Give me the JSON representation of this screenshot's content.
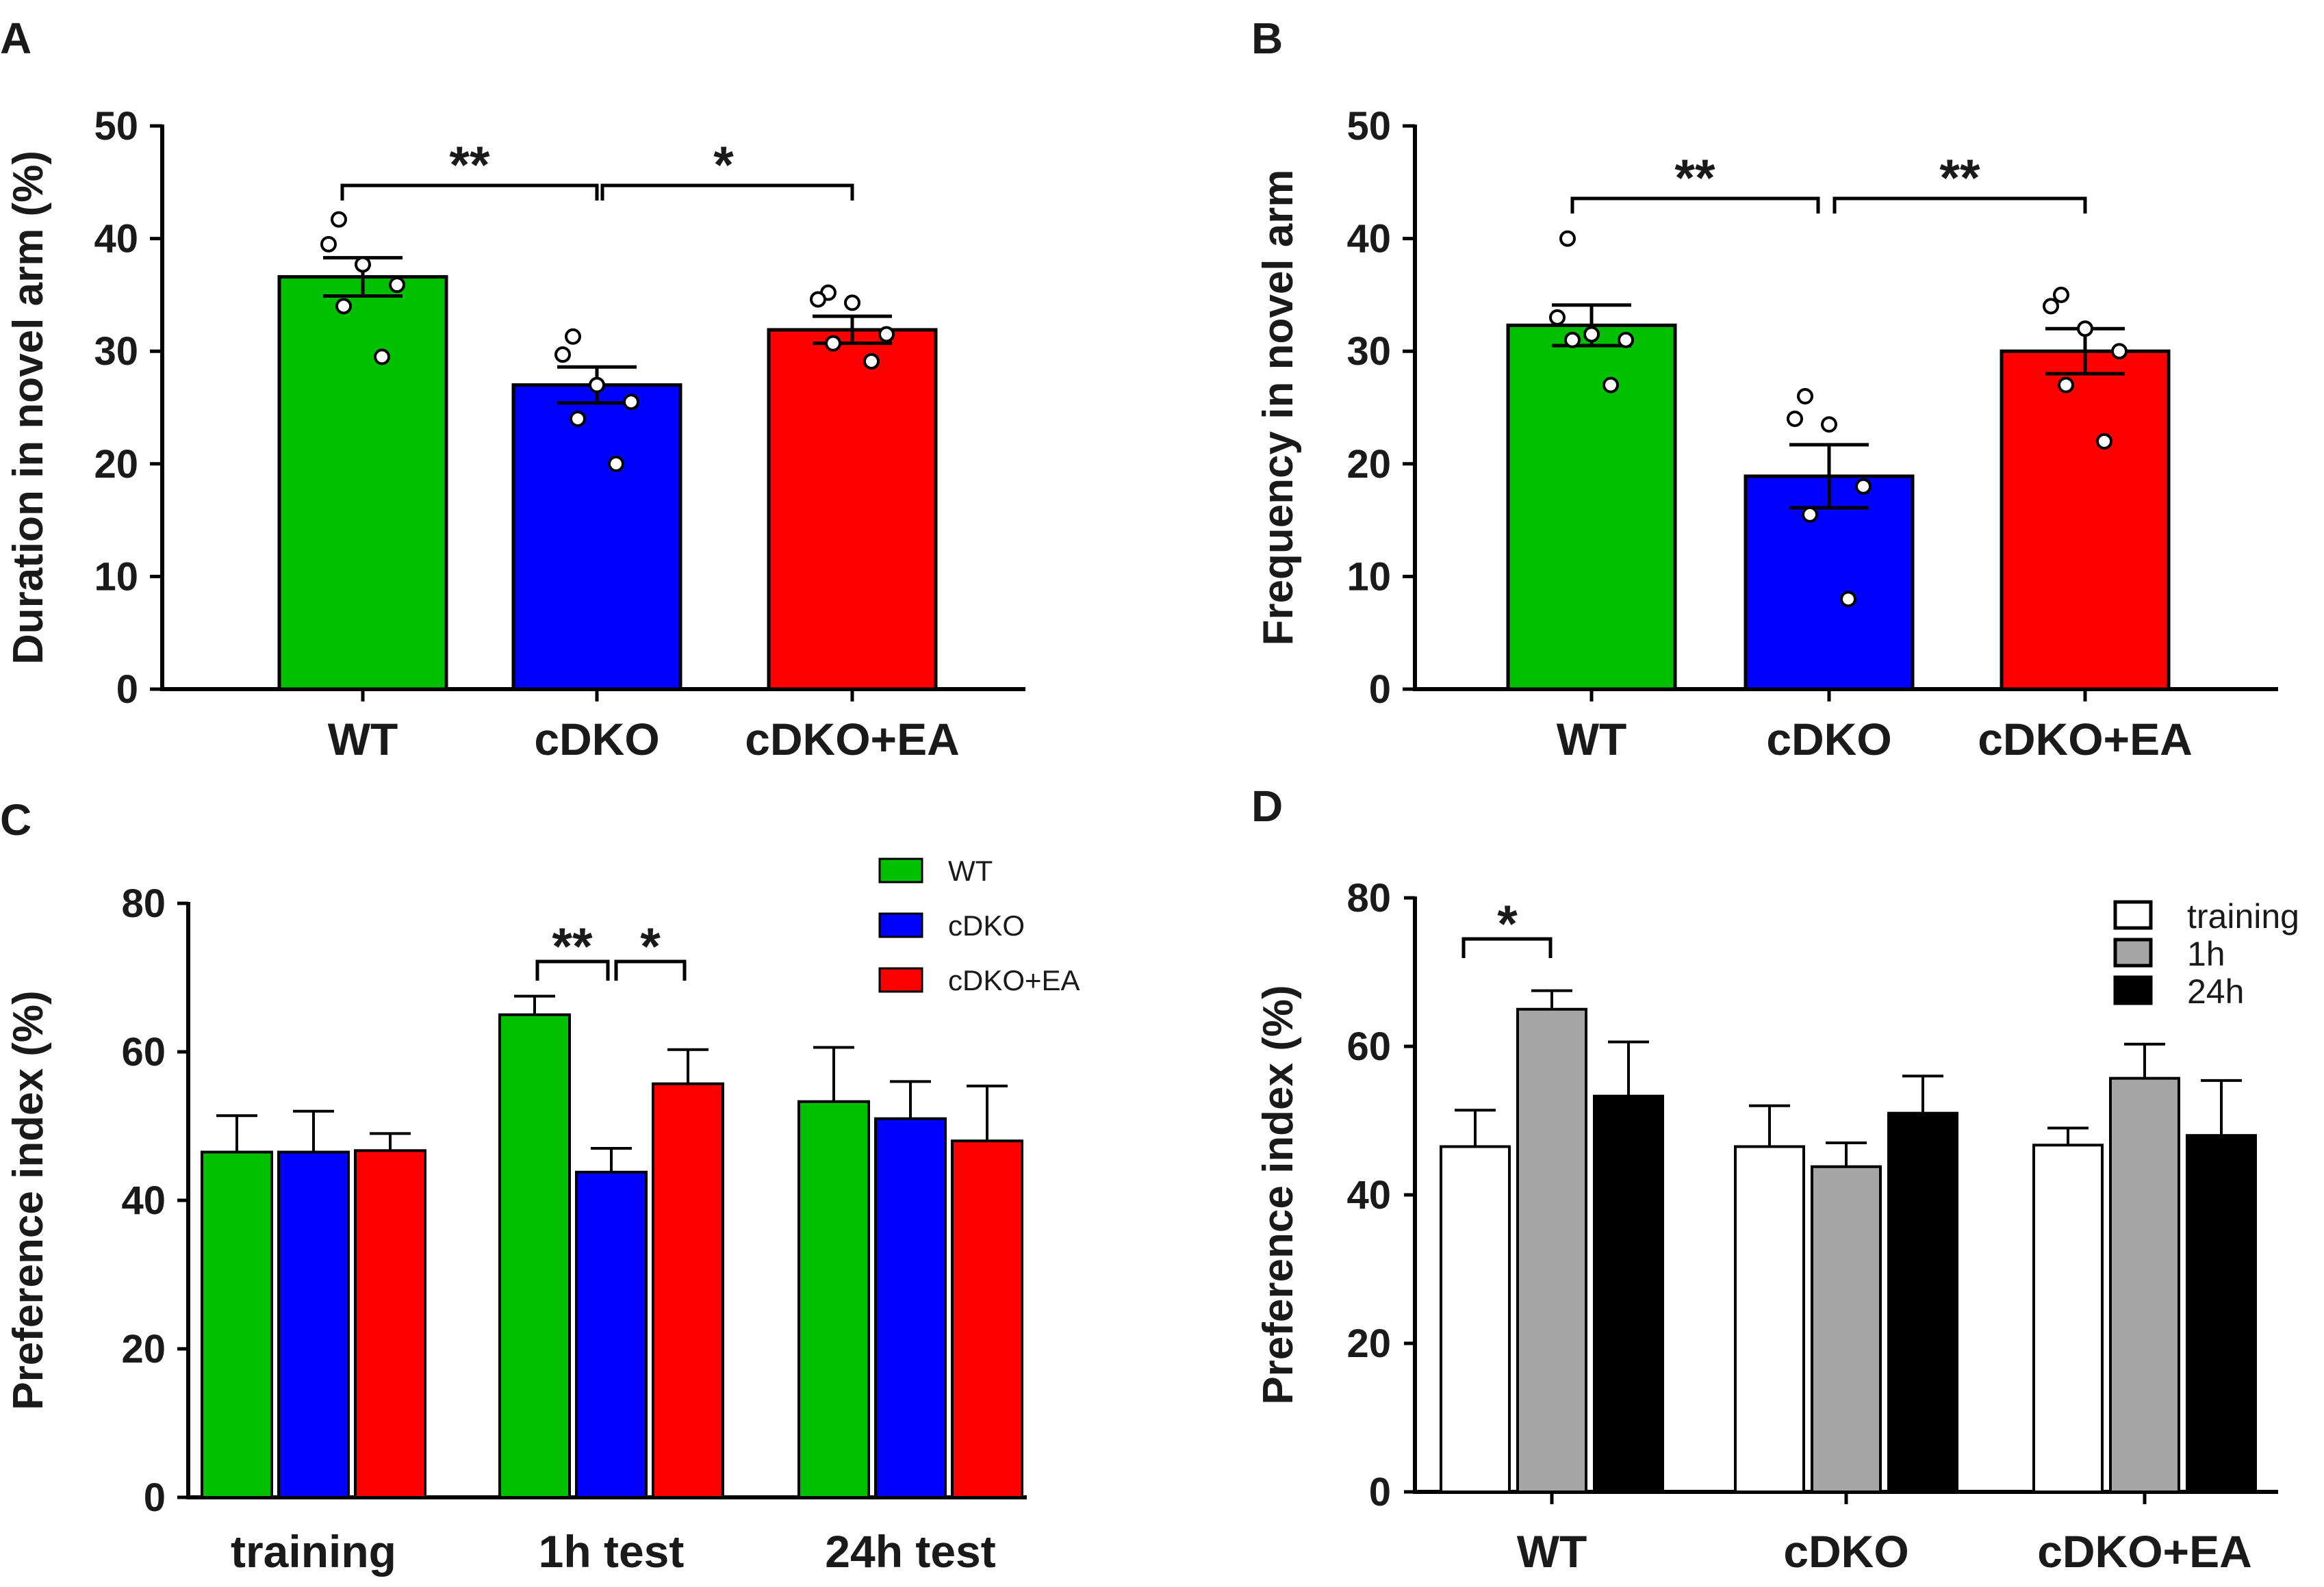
{
  "chart_data": [
    {
      "panel": "A",
      "type": "bar",
      "categories": [
        "WT",
        "cDKO",
        "cDKO+EA"
      ],
      "values": [
        36.6,
        27.0,
        31.9
      ],
      "errors": [
        1.7,
        1.6,
        1.2
      ],
      "colors": [
        "#00c000",
        "#0000ff",
        "#ff0000"
      ],
      "points": [
        [
          41.7,
          39.5,
          37.7,
          35.9,
          34.0,
          29.5
        ],
        [
          31.3,
          29.7,
          27.0,
          25.5,
          24.0,
          20.0
        ],
        [
          35.2,
          34.6,
          34.3,
          31.5,
          30.7,
          29.1
        ]
      ],
      "ylabel": "Duration in novel arm (%)",
      "ylim": [
        0,
        50
      ],
      "yticks": [
        "0",
        "10",
        "20",
        "30",
        "40",
        "50"
      ],
      "significance": [
        {
          "label": "**",
          "from": "WT",
          "to": "cDKO"
        },
        {
          "label": "*",
          "from": "cDKO",
          "to": "cDKO+EA"
        }
      ]
    },
    {
      "panel": "B",
      "type": "bar",
      "categories": [
        "WT",
        "cDKO",
        "cDKO+EA"
      ],
      "values": [
        32.3,
        18.9,
        30.0
      ],
      "errors": [
        1.8,
        2.8,
        2.0
      ],
      "colors": [
        "#00c000",
        "#0000ff",
        "#ff0000"
      ],
      "points": [
        [
          40.0,
          33.0,
          31.5,
          31.0,
          31.0,
          27.0
        ],
        [
          26.0,
          24.0,
          23.5,
          18.0,
          15.5,
          8.0
        ],
        [
          35.0,
          34.0,
          32.0,
          30.0,
          27.0,
          22.0
        ]
      ],
      "ylabel": "Frequency in novel arm",
      "ylim": [
        0,
        50
      ],
      "yticks": [
        "0",
        "10",
        "20",
        "30",
        "40",
        "50"
      ],
      "significance": [
        {
          "label": "**",
          "from": "WT",
          "to": "cDKO"
        },
        {
          "label": "**",
          "from": "cDKO",
          "to": "cDKO+EA"
        }
      ]
    },
    {
      "panel": "C",
      "type": "bar",
      "categories": [
        "training",
        "1h test",
        "24h test"
      ],
      "series": [
        {
          "name": "WT",
          "color": "#00c000",
          "values": [
            46.5,
            65.0,
            53.3
          ],
          "errors": [
            4.9,
            2.5,
            7.3
          ]
        },
        {
          "name": "cDKO",
          "color": "#0000ff",
          "values": [
            46.5,
            43.8,
            51.0
          ],
          "errors": [
            5.5,
            3.2,
            5.0
          ]
        },
        {
          "name": "cDKO+EA",
          "color": "#ff0000",
          "values": [
            46.7,
            55.7,
            48.0
          ],
          "errors": [
            2.3,
            4.6,
            7.4
          ]
        }
      ],
      "ylabel": "Preference index (%)",
      "ylim": [
        0,
        80
      ],
      "yticks": [
        "0",
        "20",
        "40",
        "60",
        "80"
      ],
      "legend": "top-right",
      "significance": [
        {
          "label": "**",
          "group": "1h test",
          "from": "WT",
          "to": "cDKO"
        },
        {
          "label": "*",
          "group": "1h test",
          "from": "cDKO",
          "to": "cDKO+EA"
        }
      ]
    },
    {
      "panel": "D",
      "type": "bar",
      "categories": [
        "WT",
        "cDKO",
        "cDKO+EA"
      ],
      "series": [
        {
          "name": "training",
          "color": "#ffffff",
          "values": [
            46.5,
            46.5,
            46.7
          ],
          "errors": [
            4.9,
            5.5,
            2.3
          ]
        },
        {
          "name": "1h",
          "color": "#a6a6a6",
          "values": [
            65.0,
            43.8,
            55.7
          ],
          "errors": [
            2.5,
            3.2,
            4.6
          ]
        },
        {
          "name": "24h",
          "color": "#000000",
          "values": [
            53.3,
            51.0,
            48.0
          ],
          "errors": [
            7.3,
            5.0,
            7.4
          ]
        }
      ],
      "ylabel": "Preference index (%)",
      "ylim": [
        0,
        80
      ],
      "yticks": [
        "0",
        "20",
        "40",
        "60",
        "80"
      ],
      "legend": "top-right",
      "significance": [
        {
          "label": "*",
          "group": "WT",
          "from": "training",
          "to": "1h"
        }
      ]
    }
  ]
}
